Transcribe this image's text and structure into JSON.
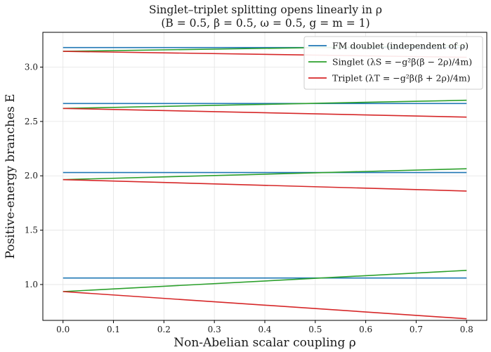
{
  "chart_data": {
    "type": "line",
    "title": "Singlet–triplet splitting opens linearly in ρ",
    "subtitle": "(B = 0.5,  β = 0.5,  ω = 0.5,  g = m = 1)",
    "xlabel": "Non-Abelian scalar coupling ρ",
    "ylabel": "Positive-energy branches E",
    "xlim": [
      -0.04,
      0.84
    ],
    "ylim": [
      0.67,
      3.32
    ],
    "xticks": [
      "0.0",
      "0.1",
      "0.2",
      "0.3",
      "0.4",
      "0.5",
      "0.6",
      "0.7",
      "0.8"
    ],
    "xtick_values": [
      0.0,
      0.1,
      0.2,
      0.3,
      0.4,
      0.5,
      0.6,
      0.7,
      0.8
    ],
    "yticks": [
      "1.0",
      "1.5",
      "2.0",
      "2.5",
      "3.0"
    ],
    "ytick_values": [
      1.0,
      1.5,
      2.0,
      2.5,
      3.0
    ],
    "grid": true,
    "legend_position": "top-right",
    "series": [
      {
        "name": "FM doublet (independent of ρ)",
        "color": "#1f77b4",
        "lines": [
          {
            "x": [
              0.0,
              0.8
            ],
            "y": [
              1.06,
              1.06
            ]
          },
          {
            "x": [
              0.0,
              0.8
            ],
            "y": [
              2.03,
              2.03
            ]
          },
          {
            "x": [
              0.0,
              0.8
            ],
            "y": [
              2.665,
              2.665
            ]
          },
          {
            "x": [
              0.0,
              0.8
            ],
            "y": [
              3.18,
              3.18
            ]
          }
        ]
      },
      {
        "name": "Singlet (λS = −g²β(β − 2ρ)/4m)",
        "color": "#2ca02c",
        "lines": [
          {
            "x": [
              0.0,
              0.8
            ],
            "y": [
              0.935,
              1.13
            ]
          },
          {
            "x": [
              0.0,
              0.8
            ],
            "y": [
              1.965,
              2.065
            ]
          },
          {
            "x": [
              0.0,
              0.8
            ],
            "y": [
              2.62,
              2.695
            ]
          },
          {
            "x": [
              0.0,
              0.8
            ],
            "y": [
              3.145,
              3.2
            ]
          }
        ]
      },
      {
        "name": "Triplet (λT = −g²β(β + 2ρ)/4m)",
        "color": "#d62728",
        "lines": [
          {
            "x": [
              0.0,
              0.8
            ],
            "y": [
              0.935,
              0.685
            ]
          },
          {
            "x": [
              0.0,
              0.8
            ],
            "y": [
              1.965,
              1.86
            ]
          },
          {
            "x": [
              0.0,
              0.8
            ],
            "y": [
              2.62,
              2.54
            ]
          },
          {
            "x": [
              0.0,
              0.8
            ],
            "y": [
              3.145,
              3.09
            ]
          }
        ]
      }
    ]
  }
}
